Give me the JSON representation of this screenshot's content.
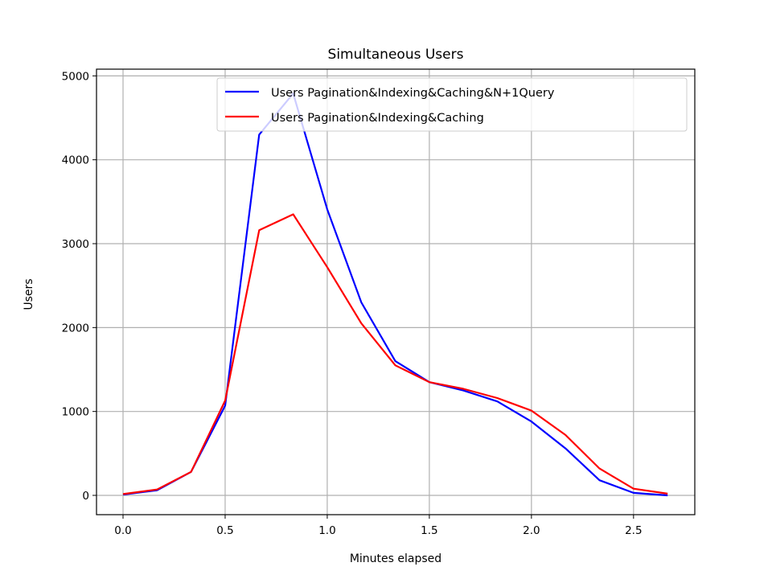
{
  "chart_data": {
    "type": "line",
    "title": "Simultaneous Users",
    "xlabel": "Minutes elapsed",
    "ylabel": "Users",
    "xlim": [
      -0.13,
      2.8
    ],
    "ylim": [
      -230,
      5080
    ],
    "xticks": [
      0.0,
      0.5,
      1.0,
      1.5,
      2.0,
      2.5
    ],
    "xtick_labels": [
      "0.0",
      "0.5",
      "1.0",
      "1.5",
      "2.0",
      "2.5"
    ],
    "yticks": [
      0,
      1000,
      2000,
      3000,
      4000,
      5000
    ],
    "ytick_labels": [
      "0",
      "1000",
      "2000",
      "3000",
      "4000",
      "5000"
    ],
    "grid": true,
    "legend_position": "upper-right",
    "x": [
      0.0,
      0.1667,
      0.3333,
      0.5,
      0.6667,
      0.8333,
      1.0,
      1.1667,
      1.3333,
      1.5,
      1.6667,
      1.8333,
      2.0,
      2.1667,
      2.3333,
      2.5,
      2.6667
    ],
    "series": [
      {
        "name": "Users Pagination&Indexing&Caching&N+1Query",
        "color": "#0000ff",
        "values": [
          10,
          60,
          280,
          1070,
          4300,
          4790,
          3410,
          2300,
          1600,
          1350,
          1250,
          1120,
          880,
          560,
          180,
          30,
          0
        ]
      },
      {
        "name": "Users Pagination&Indexing&Caching",
        "color": "#ff0000",
        "values": [
          15,
          70,
          280,
          1130,
          3160,
          3350,
          2720,
          2050,
          1550,
          1350,
          1270,
          1160,
          1010,
          720,
          320,
          80,
          20
        ]
      }
    ]
  }
}
